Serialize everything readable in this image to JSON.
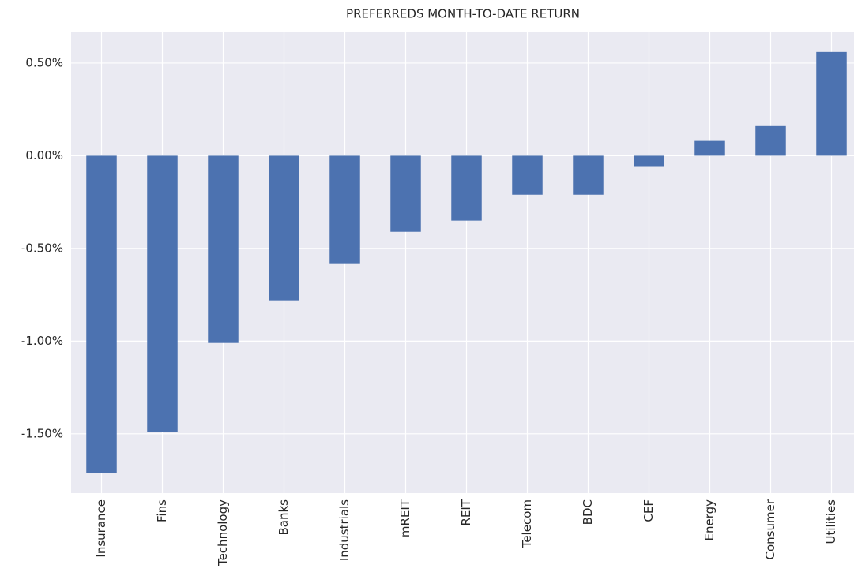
{
  "chart_data": {
    "type": "bar",
    "title": "PREFERREDS MONTH-TO-DATE RETURN",
    "categories": [
      "Insurance",
      "Fins",
      "Technology",
      "Banks",
      "Industrials",
      "mREIT",
      "REIT",
      "Telecom",
      "BDC",
      "CEF",
      "Energy",
      "Consumer",
      "Utilities"
    ],
    "values": [
      -1.71,
      -1.49,
      -1.01,
      -0.78,
      -0.58,
      -0.41,
      -0.35,
      -0.21,
      -0.21,
      -0.06,
      0.08,
      0.16,
      0.56
    ],
    "color": "#4c72b0",
    "ylim": [
      -1.82,
      0.67
    ],
    "yticks": [
      {
        "value": 0.5,
        "label": "0.50%"
      },
      {
        "value": 0,
        "label": "0.00%"
      },
      {
        "value": -0.5,
        "label": "-0.50%"
      },
      {
        "value": -1,
        "label": "-1.00%"
      },
      {
        "value": -1.5,
        "label": "-1.50%"
      }
    ],
    "grid": true
  }
}
